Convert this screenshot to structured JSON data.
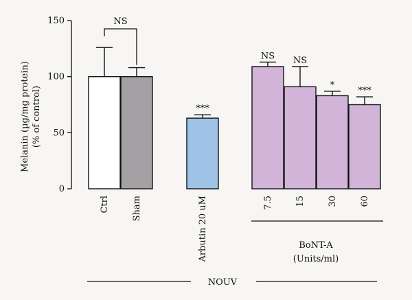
{
  "chart_data": {
    "type": "bar",
    "ylabel": "Melanin (µg/mg protein)",
    "ylabel2": "(% of control)",
    "ylim": [
      0,
      150
    ],
    "yticks": [
      0,
      50,
      100,
      150
    ],
    "grid": false,
    "bars": [
      {
        "label": "Ctrl",
        "value": 100,
        "error": 26,
        "color": "#ffffff",
        "sig": ""
      },
      {
        "label": "Sham",
        "value": 100,
        "error": 8,
        "color": "#a3a1a3",
        "sig": ""
      },
      {
        "label": "Arbutin 20 uM",
        "value": 63,
        "error": 3,
        "color": "#9ec3e6",
        "sig": "***"
      },
      {
        "label": "7.5",
        "value": 109,
        "error": 4,
        "color": "#d2b4d9",
        "sig": "NS"
      },
      {
        "label": "15",
        "value": 91,
        "error": 18,
        "color": "#d2b4d9",
        "sig": "NS"
      },
      {
        "label": "30",
        "value": 83,
        "error": 4,
        "color": "#d2b4d9",
        "sig": "*"
      },
      {
        "label": "60",
        "value": 75,
        "error": 7,
        "color": "#d2b4d9",
        "sig": "***"
      }
    ],
    "bracket": {
      "label": "NS"
    },
    "group_boNT": {
      "line1": "BoNT-A",
      "line2": "(Units/ml)"
    },
    "group_nouv": {
      "label": "NOUV"
    }
  }
}
